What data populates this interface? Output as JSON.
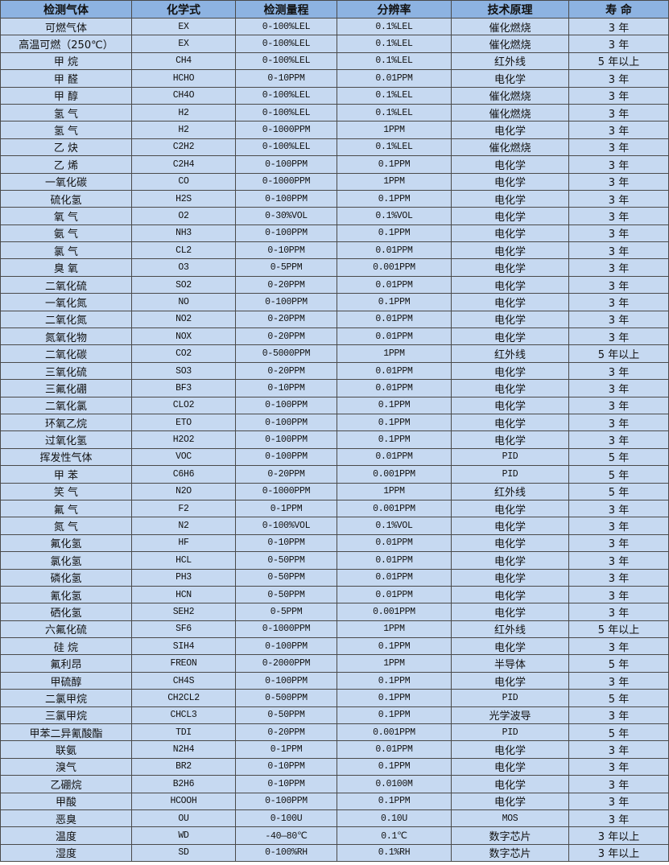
{
  "colors": {
    "header_bg": "#8db3e2",
    "row_bg": "#c6d9f1",
    "border": "#4a4a4a"
  },
  "headers": [
    "检测气体",
    "化学式",
    "检测量程",
    "分辨率",
    "技术原理",
    "寿 命"
  ],
  "rows": [
    [
      "可燃气体",
      "EX",
      "0-100%LEL",
      "0.1%LEL",
      "催化燃烧",
      "3 年"
    ],
    [
      "高温可燃（250℃）",
      "EX",
      "0-100%LEL",
      "0.1%LEL",
      "催化燃烧",
      "3 年"
    ],
    [
      "甲 烷",
      "CH4",
      "0-100%LEL",
      "0.1%LEL",
      "红外线",
      "5 年以上"
    ],
    [
      "甲 醛",
      "HCHO",
      "0-10PPM",
      "0.01PPM",
      "电化学",
      "3 年"
    ],
    [
      "甲 醇",
      "CH4O",
      "0-100%LEL",
      "0.1%LEL",
      "催化燃烧",
      "3 年"
    ],
    [
      "氢 气",
      "H2",
      "0-100%LEL",
      "0.1%LEL",
      "催化燃烧",
      "3 年"
    ],
    [
      "氢 气",
      "H2",
      "0-1000PPM",
      "1PPM",
      "电化学",
      "3 年"
    ],
    [
      "乙 炔",
      "C2H2",
      "0-100%LEL",
      "0.1%LEL",
      "催化燃烧",
      "3 年"
    ],
    [
      "乙 烯",
      "C2H4",
      "0-100PPM",
      "0.1PPM",
      "电化学",
      "3 年"
    ],
    [
      "一氧化碳",
      "CO",
      "0-1000PPM",
      "1PPM",
      "电化学",
      "3 年"
    ],
    [
      "硫化氢",
      "H2S",
      "0-100PPM",
      "0.1PPM",
      "电化学",
      "3 年"
    ],
    [
      "氧 气",
      "O2",
      "0-30%VOL",
      "0.1%VOL",
      "电化学",
      "3 年"
    ],
    [
      "氨 气",
      "NH3",
      "0-100PPM",
      "0.1PPM",
      "电化学",
      "3 年"
    ],
    [
      "氯 气",
      "CL2",
      "0-10PPM",
      "0.01PPM",
      "电化学",
      "3 年"
    ],
    [
      "臭 氧",
      "O3",
      "0-5PPM",
      "0.001PPM",
      "电化学",
      "3 年"
    ],
    [
      "二氧化硫",
      "SO2",
      "0-20PPM",
      "0.01PPM",
      "电化学",
      "3 年"
    ],
    [
      "一氧化氮",
      "NO",
      "0-100PPM",
      "0.1PPM",
      "电化学",
      "3 年"
    ],
    [
      "二氧化氮",
      "NO2",
      "0-20PPM",
      "0.01PPM",
      "电化学",
      "3 年"
    ],
    [
      "氮氧化物",
      "NOX",
      "0-20PPM",
      "0.01PPM",
      "电化学",
      "3 年"
    ],
    [
      "二氧化碳",
      "CO2",
      "0-5000PPM",
      "1PPM",
      "红外线",
      "5 年以上"
    ],
    [
      "三氧化硫",
      "SO3",
      "0-20PPM",
      "0.01PPM",
      "电化学",
      "3 年"
    ],
    [
      "三氟化硼",
      "BF3",
      "0-10PPM",
      "0.01PPM",
      "电化学",
      "3 年"
    ],
    [
      "二氧化氯",
      "CLO2",
      "0-100PPM",
      "0.1PPM",
      "电化学",
      "3 年"
    ],
    [
      "环氧乙烷",
      "ETO",
      "0-100PPM",
      "0.1PPM",
      "电化学",
      "3 年"
    ],
    [
      "过氧化氢",
      "H2O2",
      "0-100PPM",
      "0.1PPM",
      "电化学",
      "3 年"
    ],
    [
      "挥发性气体",
      "VOC",
      "0-100PPM",
      "0.01PPM",
      "PID",
      "5 年"
    ],
    [
      "甲 苯",
      "C6H6",
      "0-20PPM",
      "0.001PPM",
      "PID",
      "5 年"
    ],
    [
      "笑 气",
      "N2O",
      "0-1000PPM",
      "1PPM",
      "红外线",
      "5 年"
    ],
    [
      "氟 气",
      "F2",
      "0-1PPM",
      "0.001PPM",
      "电化学",
      "3 年"
    ],
    [
      "氮 气",
      "N2",
      "0-100%VOL",
      "0.1%VOL",
      "电化学",
      "3 年"
    ],
    [
      "氟化氢",
      "HF",
      "0-10PPM",
      "0.01PPM",
      "电化学",
      "3 年"
    ],
    [
      "氯化氢",
      "HCL",
      "0-50PPM",
      "0.01PPM",
      "电化学",
      "3 年"
    ],
    [
      "磷化氢",
      "PH3",
      "0-50PPM",
      "0.01PPM",
      "电化学",
      "3 年"
    ],
    [
      "氰化氢",
      "HCN",
      "0-50PPM",
      "0.01PPM",
      "电化学",
      "3 年"
    ],
    [
      "硒化氢",
      "SEH2",
      "0-5PPM",
      "0.001PPM",
      "电化学",
      "3 年"
    ],
    [
      "六氟化硫",
      "SF6",
      "0-1000PPM",
      "1PPM",
      "红外线",
      "5 年以上"
    ],
    [
      "硅 烷",
      "SIH4",
      "0-100PPM",
      "0.1PPM",
      "电化学",
      "3 年"
    ],
    [
      "氟利昂",
      "FREON",
      "0-2000PPM",
      "1PPM",
      "半导体",
      "5 年"
    ],
    [
      "甲硫醇",
      "CH4S",
      "0-100PPM",
      "0.1PPM",
      "电化学",
      "3 年"
    ],
    [
      "二氯甲烷",
      "CH2CL2",
      "0-500PPM",
      "0.1PPM",
      "PID",
      "5 年"
    ],
    [
      "三氯甲烷",
      "CHCL3",
      "0-50PPM",
      "0.1PPM",
      "光学波导",
      "3 年"
    ],
    [
      "甲苯二异氰酸酯",
      "TDI",
      "0-20PPM",
      "0.001PPM",
      "PID",
      "5 年"
    ],
    [
      "联氨",
      "N2H4",
      "0-1PPM",
      "0.01PPM",
      "电化学",
      "3 年"
    ],
    [
      "溴气",
      "BR2",
      "0-10PPM",
      "0.1PPM",
      "电化学",
      "3 年"
    ],
    [
      "乙硼烷",
      "B2H6",
      "0-10PPM",
      "0.0100M",
      "电化学",
      "3 年"
    ],
    [
      "甲酸",
      "HCOOH",
      "0-100PPM",
      "0.1PPM",
      "电化学",
      "3 年"
    ],
    [
      "恶臭",
      "OU",
      "0-100U",
      "0.10U",
      "MOS",
      "3 年"
    ],
    [
      "温度",
      "WD",
      "-40—80℃",
      "0.1℃",
      "数字芯片",
      "3 年以上"
    ],
    [
      "湿度",
      "SD",
      "0-100%RH",
      "0.1%RH",
      "数字芯片",
      "3 年以上"
    ]
  ]
}
